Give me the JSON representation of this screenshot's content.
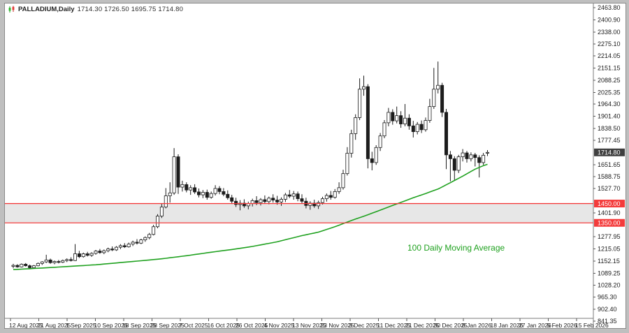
{
  "header": {
    "icon": "candlestick-chart-icon",
    "symbol": "PALLADIUM,Daily",
    "ohlc": "1714.30 1726.50 1695.75 1714.80"
  },
  "annotation": {
    "ma_label": "100 Daily Moving Average"
  },
  "chart_data": {
    "type": "candlestick",
    "title": "PALLADIUM,Daily",
    "last_candle_ohlc": {
      "open": 1714.3,
      "high": 1726.5,
      "low": 1695.75,
      "close": 1714.8
    },
    "last_price_tag": "1714.80",
    "price_axis": {
      "min": 841.35,
      "max": 2463.8,
      "ticks": [
        2463.8,
        2400.9,
        2338.0,
        2275.1,
        2214.05,
        2151.15,
        2088.25,
        2025.35,
        1964.3,
        1901.4,
        1838.5,
        1777.45,
        1651.65,
        1588.75,
        1527.7,
        1401.9,
        1277.95,
        1215.05,
        1152.15,
        1089.25,
        1028.2,
        965.3,
        902.4,
        841.35
      ]
    },
    "time_axis": {
      "labels": [
        "12 Aug 2025",
        "21 Aug 2025",
        "1 Sep 2025",
        "10 Sep 2025",
        "18 Sep 2025",
        "28 Sep 2025",
        "7 Oct 2025",
        "16 Oct 2025",
        "26 Oct 2025",
        "4 Nov 2025",
        "13 Nov 2025",
        "23 Nov 2025",
        "3 Dec 2025",
        "11 Dec 2025",
        "21 Dec 2025",
        "30 Dec 2025",
        "8 Jan 2026",
        "18 Jan 2026",
        "27 Jan 2026",
        "5 Feb 2026",
        "15 Feb 2026"
      ]
    },
    "horizontal_zone": {
      "top": 1450.0,
      "bottom": 1350.0,
      "top_label": "1450.00",
      "bottom_label": "1350.00"
    },
    "moving_average": {
      "label": "100 Daily Moving Average",
      "keypoints": [
        [
          0,
          1108
        ],
        [
          10,
          1120
        ],
        [
          20,
          1133
        ],
        [
          30,
          1152
        ],
        [
          36,
          1164
        ],
        [
          42,
          1180
        ],
        [
          48,
          1198
        ],
        [
          54,
          1215
        ],
        [
          58,
          1228
        ],
        [
          64,
          1252
        ],
        [
          70,
          1284
        ],
        [
          74,
          1302
        ],
        [
          78,
          1330
        ],
        [
          82,
          1362
        ],
        [
          86,
          1392
        ],
        [
          90,
          1424
        ],
        [
          94,
          1456
        ],
        [
          97,
          1480
        ],
        [
          100,
          1502
        ],
        [
          103,
          1525
        ],
        [
          106,
          1558
        ],
        [
          109,
          1592
        ],
        [
          112,
          1628
        ],
        [
          114,
          1646
        ],
        [
          115,
          1653
        ]
      ]
    },
    "colors": {
      "up": "#ffffff",
      "down": "#1c1c1c",
      "outline": "#1c1c1c",
      "ma": "#1fa11f",
      "zone_fill": "#e7e7e7",
      "zone_line": "#f43b3b",
      "tag_bg": "#3f3f3f",
      "axis_text": "#1b1b1b",
      "axis_line": "#7a7a7a"
    },
    "candles": [
      [
        1125,
        1138,
        1115,
        1130
      ],
      [
        1130,
        1136,
        1118,
        1122
      ],
      [
        1122,
        1140,
        1119,
        1136
      ],
      [
        1136,
        1142,
        1124,
        1128
      ],
      [
        1128,
        1134,
        1112,
        1118
      ],
      [
        1118,
        1132,
        1114,
        1128
      ],
      [
        1128,
        1145,
        1125,
        1140
      ],
      [
        1140,
        1152,
        1132,
        1148
      ],
      [
        1148,
        1185,
        1142,
        1158
      ],
      [
        1158,
        1165,
        1138,
        1144
      ],
      [
        1144,
        1155,
        1136,
        1150
      ],
      [
        1150,
        1158,
        1140,
        1146
      ],
      [
        1146,
        1160,
        1142,
        1155
      ],
      [
        1155,
        1166,
        1147,
        1160
      ],
      [
        1160,
        1172,
        1150,
        1155
      ],
      [
        1155,
        1240,
        1152,
        1190
      ],
      [
        1190,
        1205,
        1168,
        1175
      ],
      [
        1175,
        1196,
        1170,
        1190
      ],
      [
        1190,
        1200,
        1176,
        1182
      ],
      [
        1182,
        1198,
        1174,
        1192
      ],
      [
        1192,
        1210,
        1185,
        1204
      ],
      [
        1204,
        1215,
        1190,
        1196
      ],
      [
        1196,
        1212,
        1188,
        1206
      ],
      [
        1206,
        1222,
        1198,
        1215
      ],
      [
        1215,
        1228,
        1204,
        1210
      ],
      [
        1210,
        1230,
        1205,
        1224
      ],
      [
        1224,
        1240,
        1214,
        1232
      ],
      [
        1232,
        1245,
        1220,
        1226
      ],
      [
        1226,
        1248,
        1222,
        1240
      ],
      [
        1240,
        1258,
        1230,
        1250
      ],
      [
        1250,
        1266,
        1238,
        1245
      ],
      [
        1245,
        1268,
        1240,
        1262
      ],
      [
        1262,
        1280,
        1252,
        1274
      ],
      [
        1274,
        1298,
        1265,
        1290
      ],
      [
        1290,
        1340,
        1285,
        1330
      ],
      [
        1330,
        1395,
        1322,
        1385
      ],
      [
        1385,
        1448,
        1375,
        1432
      ],
      [
        1432,
        1530,
        1425,
        1490
      ],
      [
        1490,
        1560,
        1455,
        1505
      ],
      [
        1505,
        1737,
        1495,
        1692
      ],
      [
        1692,
        1705,
        1500,
        1535
      ],
      [
        1535,
        1568,
        1512,
        1548
      ],
      [
        1548,
        1560,
        1508,
        1520
      ],
      [
        1520,
        1545,
        1495,
        1532
      ],
      [
        1532,
        1550,
        1500,
        1510
      ],
      [
        1510,
        1528,
        1482,
        1495
      ],
      [
        1495,
        1520,
        1478,
        1508
      ],
      [
        1508,
        1522,
        1470,
        1482
      ],
      [
        1482,
        1512,
        1475,
        1502
      ],
      [
        1502,
        1545,
        1492,
        1528
      ],
      [
        1528,
        1540,
        1498,
        1512
      ],
      [
        1512,
        1530,
        1488,
        1498
      ],
      [
        1498,
        1518,
        1470,
        1480
      ],
      [
        1480,
        1495,
        1448,
        1462
      ],
      [
        1462,
        1480,
        1432,
        1445
      ],
      [
        1445,
        1468,
        1415,
        1452
      ],
      [
        1452,
        1472,
        1428,
        1438
      ],
      [
        1438,
        1460,
        1420,
        1450
      ],
      [
        1450,
        1475,
        1435,
        1465
      ],
      [
        1465,
        1488,
        1442,
        1455
      ],
      [
        1455,
        1478,
        1440,
        1470
      ],
      [
        1470,
        1492,
        1450,
        1460
      ],
      [
        1460,
        1486,
        1446,
        1478
      ],
      [
        1478,
        1498,
        1455,
        1468
      ],
      [
        1468,
        1490,
        1444,
        1458
      ],
      [
        1458,
        1482,
        1438,
        1472
      ],
      [
        1472,
        1505,
        1458,
        1495
      ],
      [
        1495,
        1520,
        1478,
        1488
      ],
      [
        1488,
        1515,
        1470,
        1500
      ],
      [
        1500,
        1512,
        1462,
        1475
      ],
      [
        1475,
        1498,
        1452,
        1462
      ],
      [
        1462,
        1480,
        1425,
        1440
      ],
      [
        1440,
        1462,
        1418,
        1452
      ],
      [
        1452,
        1470,
        1428,
        1438
      ],
      [
        1438,
        1465,
        1422,
        1455
      ],
      [
        1455,
        1485,
        1445,
        1475
      ],
      [
        1475,
        1502,
        1460,
        1492
      ],
      [
        1492,
        1515,
        1470,
        1482
      ],
      [
        1482,
        1525,
        1475,
        1512
      ],
      [
        1512,
        1560,
        1500,
        1532
      ],
      [
        1532,
        1625,
        1522,
        1605
      ],
      [
        1605,
        1742,
        1595,
        1710
      ],
      [
        1710,
        1832,
        1688,
        1812
      ],
      [
        1812,
        1912,
        1780,
        1895
      ],
      [
        1895,
        2098,
        1882,
        2042
      ],
      [
        2042,
        2112,
        2008,
        2055
      ],
      [
        2055,
        2068,
        1632,
        1682
      ],
      [
        1682,
        1718,
        1622,
        1662
      ],
      [
        1662,
        1752,
        1650,
        1740
      ],
      [
        1740,
        1815,
        1722,
        1800
      ],
      [
        1800,
        1882,
        1788,
        1868
      ],
      [
        1868,
        1945,
        1850,
        1922
      ],
      [
        1922,
        1938,
        1858,
        1878
      ],
      [
        1878,
        1952,
        1865,
        1905
      ],
      [
        1905,
        1928,
        1842,
        1862
      ],
      [
        1862,
        1965,
        1850,
        1892
      ],
      [
        1892,
        1912,
        1832,
        1852
      ],
      [
        1852,
        1878,
        1792,
        1822
      ],
      [
        1822,
        1872,
        1808,
        1860
      ],
      [
        1860,
        1880,
        1815,
        1832
      ],
      [
        1832,
        1895,
        1822,
        1880
      ],
      [
        1880,
        1992,
        1868,
        1952
      ],
      [
        1952,
        2152,
        1940,
        2042
      ],
      [
        2042,
        2185,
        2020,
        2062
      ],
      [
        2062,
        2075,
        1898,
        1922
      ],
      [
        1922,
        1940,
        1628,
        1702
      ],
      [
        1702,
        1722,
        1565,
        1682
      ],
      [
        1682,
        1695,
        1572,
        1622
      ],
      [
        1622,
        1702,
        1608,
        1692
      ],
      [
        1692,
        1732,
        1668,
        1712
      ],
      [
        1712,
        1722,
        1662,
        1682
      ],
      [
        1682,
        1715,
        1668,
        1702
      ],
      [
        1702,
        1712,
        1642,
        1688
      ],
      [
        1688,
        1700,
        1585,
        1662
      ],
      [
        1662,
        1712,
        1650,
        1700
      ],
      [
        1714.3,
        1726.5,
        1695.75,
        1714.8
      ]
    ]
  }
}
